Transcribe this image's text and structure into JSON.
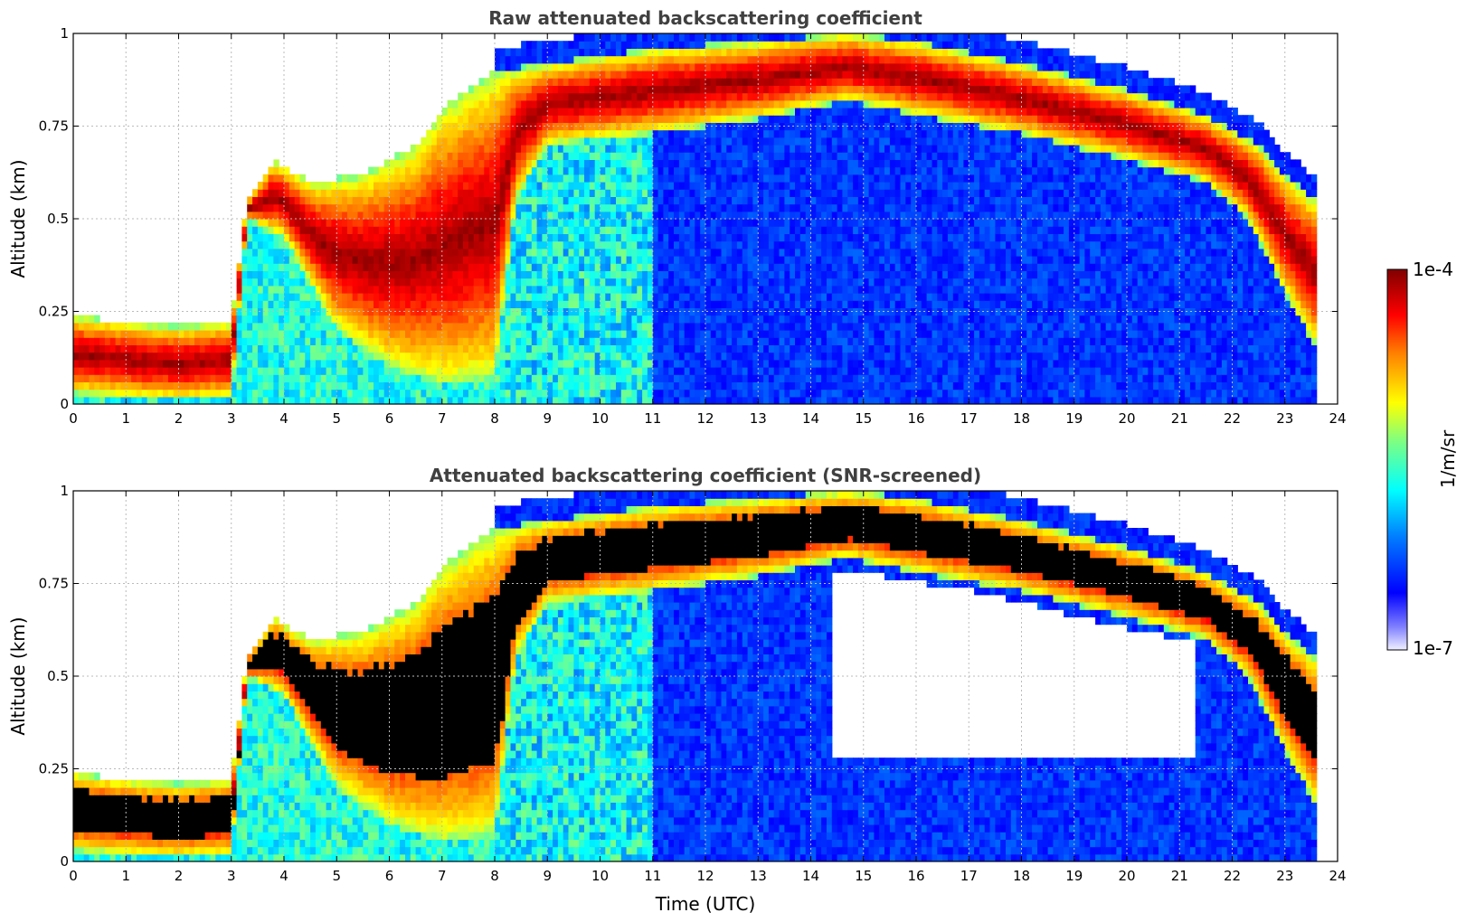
{
  "chart_data": [
    {
      "type": "heatmap",
      "title": "Raw attenuated backscattering coefficient",
      "xlabel": "",
      "ylabel": "Altitude (km)",
      "xlim": [
        0,
        24
      ],
      "ylim": [
        0,
        1
      ],
      "x_ticks": [
        "0",
        "1",
        "2",
        "3",
        "4",
        "5",
        "6",
        "7",
        "8",
        "9",
        "10",
        "11",
        "12",
        "13",
        "14",
        "15",
        "16",
        "17",
        "18",
        "19",
        "20",
        "21",
        "22",
        "23",
        "24"
      ],
      "y_ticks": [
        "0",
        "0.25",
        "0.5",
        "0.75",
        "1"
      ],
      "grid": true,
      "colormap": "jet",
      "cloud_layer_top_km": [
        [
          0.0,
          0.24
        ],
        [
          1.0,
          0.22
        ],
        [
          2.0,
          0.21
        ],
        [
          3.0,
          0.22
        ],
        [
          3.3,
          0.55
        ],
        [
          3.8,
          0.66
        ],
        [
          4.5,
          0.6
        ],
        [
          5.5,
          0.62
        ],
        [
          6.5,
          0.7
        ],
        [
          7.0,
          0.8
        ],
        [
          8.0,
          0.9
        ],
        [
          9.0,
          0.92
        ],
        [
          11.0,
          0.96
        ],
        [
          13.0,
          0.98
        ],
        [
          14.7,
          1.0
        ],
        [
          16.0,
          0.98
        ],
        [
          18.0,
          0.92
        ],
        [
          20.0,
          0.85
        ],
        [
          21.5,
          0.78
        ],
        [
          22.5,
          0.7
        ],
        [
          23.0,
          0.62
        ],
        [
          23.6,
          0.55
        ]
      ],
      "cloud_layer_base_km": [
        [
          0.0,
          0.03
        ],
        [
          1.0,
          0.02
        ],
        [
          2.0,
          0.01
        ],
        [
          3.0,
          0.02
        ],
        [
          3.3,
          0.5
        ],
        [
          4.0,
          0.45
        ],
        [
          5.0,
          0.2
        ],
        [
          6.0,
          0.1
        ],
        [
          7.0,
          0.05
        ],
        [
          8.0,
          0.07
        ],
        [
          8.4,
          0.55
        ],
        [
          9.0,
          0.7
        ],
        [
          11.0,
          0.73
        ],
        [
          13.0,
          0.77
        ],
        [
          14.7,
          0.82
        ],
        [
          16.0,
          0.78
        ],
        [
          18.0,
          0.73
        ],
        [
          20.0,
          0.66
        ],
        [
          21.5,
          0.6
        ],
        [
          22.3,
          0.5
        ],
        [
          23.0,
          0.3
        ],
        [
          23.6,
          0.15
        ]
      ]
    },
    {
      "type": "heatmap",
      "title": "Attenuated backscattering coefficient (SNR-screened)",
      "xlabel": "Time (UTC)",
      "ylabel": "Altitude (km)",
      "xlim": [
        0,
        24
      ],
      "ylim": [
        0,
        1
      ],
      "x_ticks": [
        "0",
        "1",
        "2",
        "3",
        "4",
        "5",
        "6",
        "7",
        "8",
        "9",
        "10",
        "11",
        "12",
        "13",
        "14",
        "15",
        "16",
        "17",
        "18",
        "19",
        "20",
        "21",
        "22",
        "23",
        "24"
      ],
      "y_ticks": [
        "0",
        "0.25",
        "0.5",
        "0.75",
        "1"
      ],
      "grid": true,
      "colormap": "jet",
      "screened_gap_km": [
        [
          14.5,
          0.27,
          0.8
        ],
        [
          17.0,
          0.27,
          0.74
        ],
        [
          20.0,
          0.27,
          0.64
        ],
        [
          21.3,
          0.3,
          0.6
        ]
      ]
    }
  ],
  "colorbar": {
    "label": "1/m/sr",
    "max_label": "1e-4",
    "min_label": "1e-7",
    "scale": "log",
    "range": [
      1e-07,
      0.0001
    ]
  }
}
